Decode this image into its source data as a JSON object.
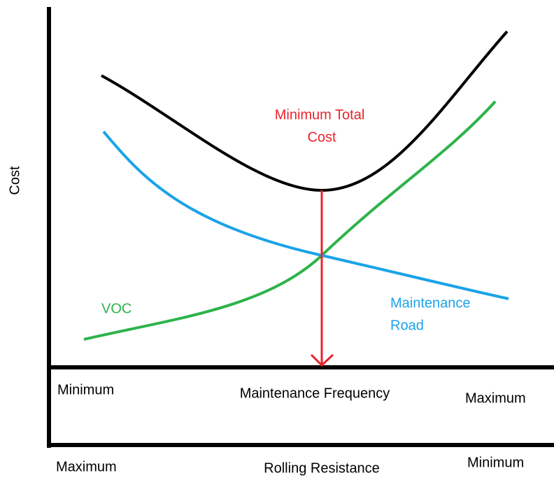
{
  "y_axis_label": "Cost",
  "curves": {
    "total": {
      "label": [
        "Minimum Total",
        "Cost"
      ]
    },
    "voc": {
      "label": [
        "VOC"
      ]
    },
    "maintenance": {
      "label": [
        "Maintenance",
        "Road"
      ]
    }
  },
  "axis_1": {
    "left": "Minimum",
    "title": "Maintenance Frequency",
    "right": "Maximum"
  },
  "axis_2": {
    "left": "Maximum",
    "title": "Rolling Resistance",
    "right": "Minimum"
  }
}
